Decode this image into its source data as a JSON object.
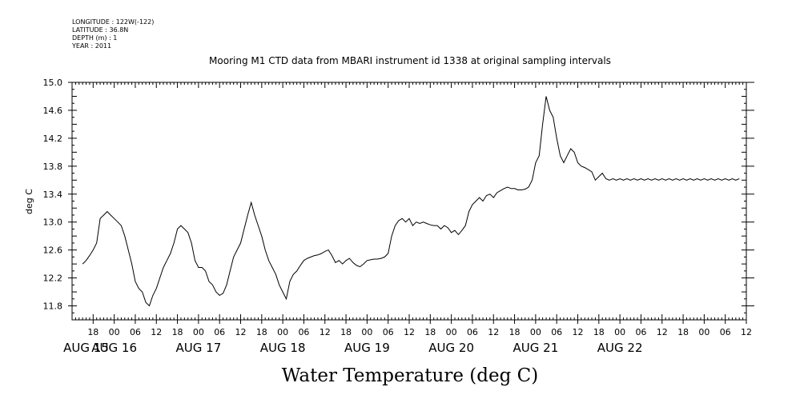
{
  "header": {
    "lines": [
      "LONGITUDE : 122W(-122)",
      "LATITUDE : 36.8N",
      "DEPTH (m) : 1",
      "YEAR : 2011"
    ]
  },
  "chart_data": {
    "type": "line",
    "title": "Mooring M1 CTD data from MBARI instrument id 1338 at original sampling intervals",
    "ylabel": "deg C",
    "bottom_title": "Water Temperature (deg C)",
    "ylim": [
      11.6,
      15.0
    ],
    "xlim": [
      -3,
      189
    ],
    "x_unit": "hours after 2011-08-15 15:00",
    "yticks": [
      "11.8",
      "12.2",
      "12.6",
      "13.0",
      "13.4",
      "13.8",
      "14.2",
      "14.6",
      "15.0"
    ],
    "hour_labels": [
      "18",
      "00",
      "06",
      "12",
      "18",
      "00",
      "06",
      "12",
      "18",
      "00",
      "06",
      "12",
      "18",
      "00",
      "06",
      "12",
      "18",
      "00",
      "06",
      "12",
      "18",
      "00",
      "06",
      "12",
      "18",
      "00",
      "06",
      "12",
      "18",
      "00",
      "06",
      "12"
    ],
    "day_labels": [
      "AUG 15",
      "AUG 16",
      "AUG 17",
      "AUG 18",
      "AUG 19",
      "AUG 20",
      "AUG 21",
      "AUG 22"
    ],
    "series": [
      {
        "name": "Water Temperature",
        "color": "#000000",
        "x": [
          0,
          1,
          2,
          3,
          4,
          5,
          6,
          7,
          8,
          9,
          10,
          11,
          12,
          13,
          14,
          15,
          16,
          17,
          18,
          19,
          20,
          21,
          22,
          23,
          24,
          25,
          26,
          27,
          28,
          29,
          30,
          31,
          32,
          33,
          34,
          35,
          36,
          37,
          38,
          39,
          40,
          41,
          42,
          43,
          44,
          45,
          46,
          47,
          48,
          49,
          50,
          51,
          52,
          53,
          54,
          55,
          56,
          57,
          58,
          59,
          60,
          61,
          62,
          63,
          64,
          65,
          66,
          67,
          68,
          69,
          70,
          71,
          72,
          73,
          74,
          75,
          76,
          77,
          78,
          79,
          80,
          81,
          82,
          83,
          84,
          85,
          86,
          87,
          88,
          89,
          90,
          91,
          92,
          93,
          94,
          95,
          96,
          97,
          98,
          99,
          100,
          101,
          102,
          103,
          104,
          105,
          106,
          107,
          108,
          109,
          110,
          111,
          112,
          113,
          114,
          115,
          116,
          117,
          118,
          119,
          120,
          121,
          122,
          123,
          124,
          125,
          126,
          127,
          128,
          129,
          130,
          131,
          132,
          133,
          134,
          135,
          136,
          137,
          138,
          139,
          140,
          141,
          142,
          143,
          144,
          145,
          146,
          147,
          148,
          149,
          150,
          151,
          152,
          153,
          154,
          155,
          156,
          157,
          158,
          159,
          160,
          161,
          162,
          163,
          164,
          165,
          166,
          167,
          168,
          169,
          170,
          171,
          172,
          173,
          174,
          175,
          176,
          177,
          178,
          179,
          180,
          181,
          182,
          183,
          184,
          185,
          186,
          187
        ],
        "y": [
          12.4,
          12.45,
          12.52,
          12.6,
          12.7,
          13.05,
          13.1,
          13.15,
          13.1,
          13.05,
          13.0,
          12.95,
          12.8,
          12.6,
          12.4,
          12.15,
          12.05,
          12.0,
          11.85,
          11.8,
          11.95,
          12.05,
          12.2,
          12.35,
          12.45,
          12.55,
          12.7,
          12.9,
          12.95,
          12.9,
          12.85,
          12.7,
          12.45,
          12.35,
          12.35,
          12.3,
          12.15,
          12.1,
          12.0,
          11.95,
          11.98,
          12.1,
          12.3,
          12.5,
          12.6,
          12.7,
          12.9,
          13.1,
          13.28,
          13.1,
          12.95,
          12.8,
          12.6,
          12.45,
          12.35,
          12.25,
          12.1,
          12.0,
          11.9,
          12.15,
          12.25,
          12.3,
          12.38,
          12.45,
          12.48,
          12.5,
          12.52,
          12.53,
          12.55,
          12.58,
          12.6,
          12.52,
          12.42,
          12.45,
          12.4,
          12.45,
          12.48,
          12.42,
          12.38,
          12.36,
          12.4,
          12.45,
          12.46,
          12.47,
          12.47,
          12.48,
          12.5,
          12.55,
          12.8,
          12.95,
          13.02,
          13.05,
          13.0,
          13.05,
          12.95,
          13.0,
          12.98,
          13.0,
          12.98,
          12.96,
          12.95,
          12.95,
          12.9,
          12.95,
          12.92,
          12.85,
          12.88,
          12.82,
          12.88,
          12.95,
          13.15,
          13.25,
          13.3,
          13.35,
          13.3,
          13.38,
          13.4,
          13.35,
          13.42,
          13.45,
          13.48,
          13.5,
          13.48,
          13.48,
          13.46,
          13.46,
          13.47,
          13.5,
          13.6,
          13.85,
          13.95,
          14.4,
          14.8,
          14.6,
          14.5,
          14.2,
          13.95,
          13.85,
          13.95,
          14.05,
          14.0,
          13.85,
          13.8,
          13.78,
          13.75,
          13.72,
          13.6,
          13.65,
          13.7,
          13.62,
          13.6,
          13.62,
          13.6,
          13.62,
          13.6,
          13.62,
          13.6,
          13.62,
          13.6,
          13.62,
          13.6,
          13.62,
          13.6,
          13.62,
          13.6,
          13.62,
          13.6,
          13.62,
          13.6,
          13.62,
          13.6,
          13.62,
          13.6,
          13.62,
          13.6,
          13.62,
          13.6,
          13.62,
          13.6,
          13.62,
          13.6,
          13.62,
          13.6,
          13.62,
          13.6,
          13.62,
          13.6,
          13.62
        ]
      }
    ]
  }
}
